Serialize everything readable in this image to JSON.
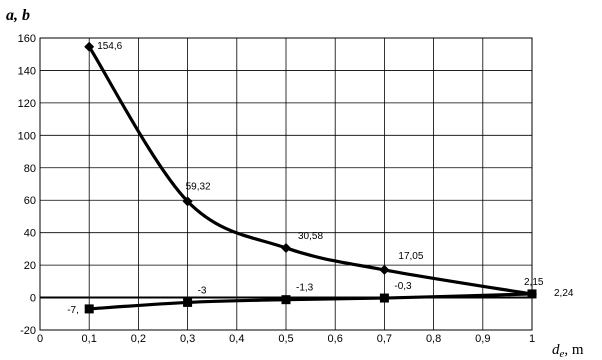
{
  "chart_data": {
    "type": "line",
    "title": "",
    "ylabel_main": "a, b",
    "xlabel_var": "d",
    "xlabel_sub": "e",
    "xlabel_unit": ", m",
    "xlim": [
      0,
      1
    ],
    "ylim": [
      -20,
      160
    ],
    "x_ticks": [
      {
        "v": 0,
        "label": "0"
      },
      {
        "v": 0.1,
        "label": "0,1"
      },
      {
        "v": 0.2,
        "label": "0,2"
      },
      {
        "v": 0.3,
        "label": "0,3"
      },
      {
        "v": 0.4,
        "label": "0,4"
      },
      {
        "v": 0.5,
        "label": "0,5"
      },
      {
        "v": 0.6,
        "label": "0,6"
      },
      {
        "v": 0.7,
        "label": "0,7"
      },
      {
        "v": 0.8,
        "label": "0,8"
      },
      {
        "v": 0.9,
        "label": "0,9"
      },
      {
        "v": 1,
        "label": "1"
      }
    ],
    "y_ticks": [
      {
        "v": -20,
        "label": "-20"
      },
      {
        "v": 0,
        "label": "0"
      },
      {
        "v": 20,
        "label": "20"
      },
      {
        "v": 40,
        "label": "40"
      },
      {
        "v": 60,
        "label": "60"
      },
      {
        "v": 80,
        "label": "80"
      },
      {
        "v": 100,
        "label": "100"
      },
      {
        "v": 120,
        "label": "120"
      },
      {
        "v": 140,
        "label": "140"
      },
      {
        "v": 160,
        "label": "160"
      }
    ],
    "grid": true,
    "series": [
      {
        "marker": "diamond",
        "x": [
          0.1,
          0.3,
          0.5,
          0.7,
          1.0
        ],
        "y": [
          154.6,
          59.32,
          30.58,
          17.05,
          2.15
        ],
        "labels": [
          "154,6",
          "59,32",
          "30,58",
          "17,05",
          "2,15"
        ]
      },
      {
        "marker": "square",
        "x": [
          0.1,
          0.3,
          0.5,
          0.7,
          1.0
        ],
        "y": [
          -7,
          -3,
          -1.3,
          -0.3,
          2.24
        ],
        "labels": [
          "-7,",
          "-3",
          "-1,3",
          "-0,3",
          "2,24"
        ]
      }
    ]
  }
}
